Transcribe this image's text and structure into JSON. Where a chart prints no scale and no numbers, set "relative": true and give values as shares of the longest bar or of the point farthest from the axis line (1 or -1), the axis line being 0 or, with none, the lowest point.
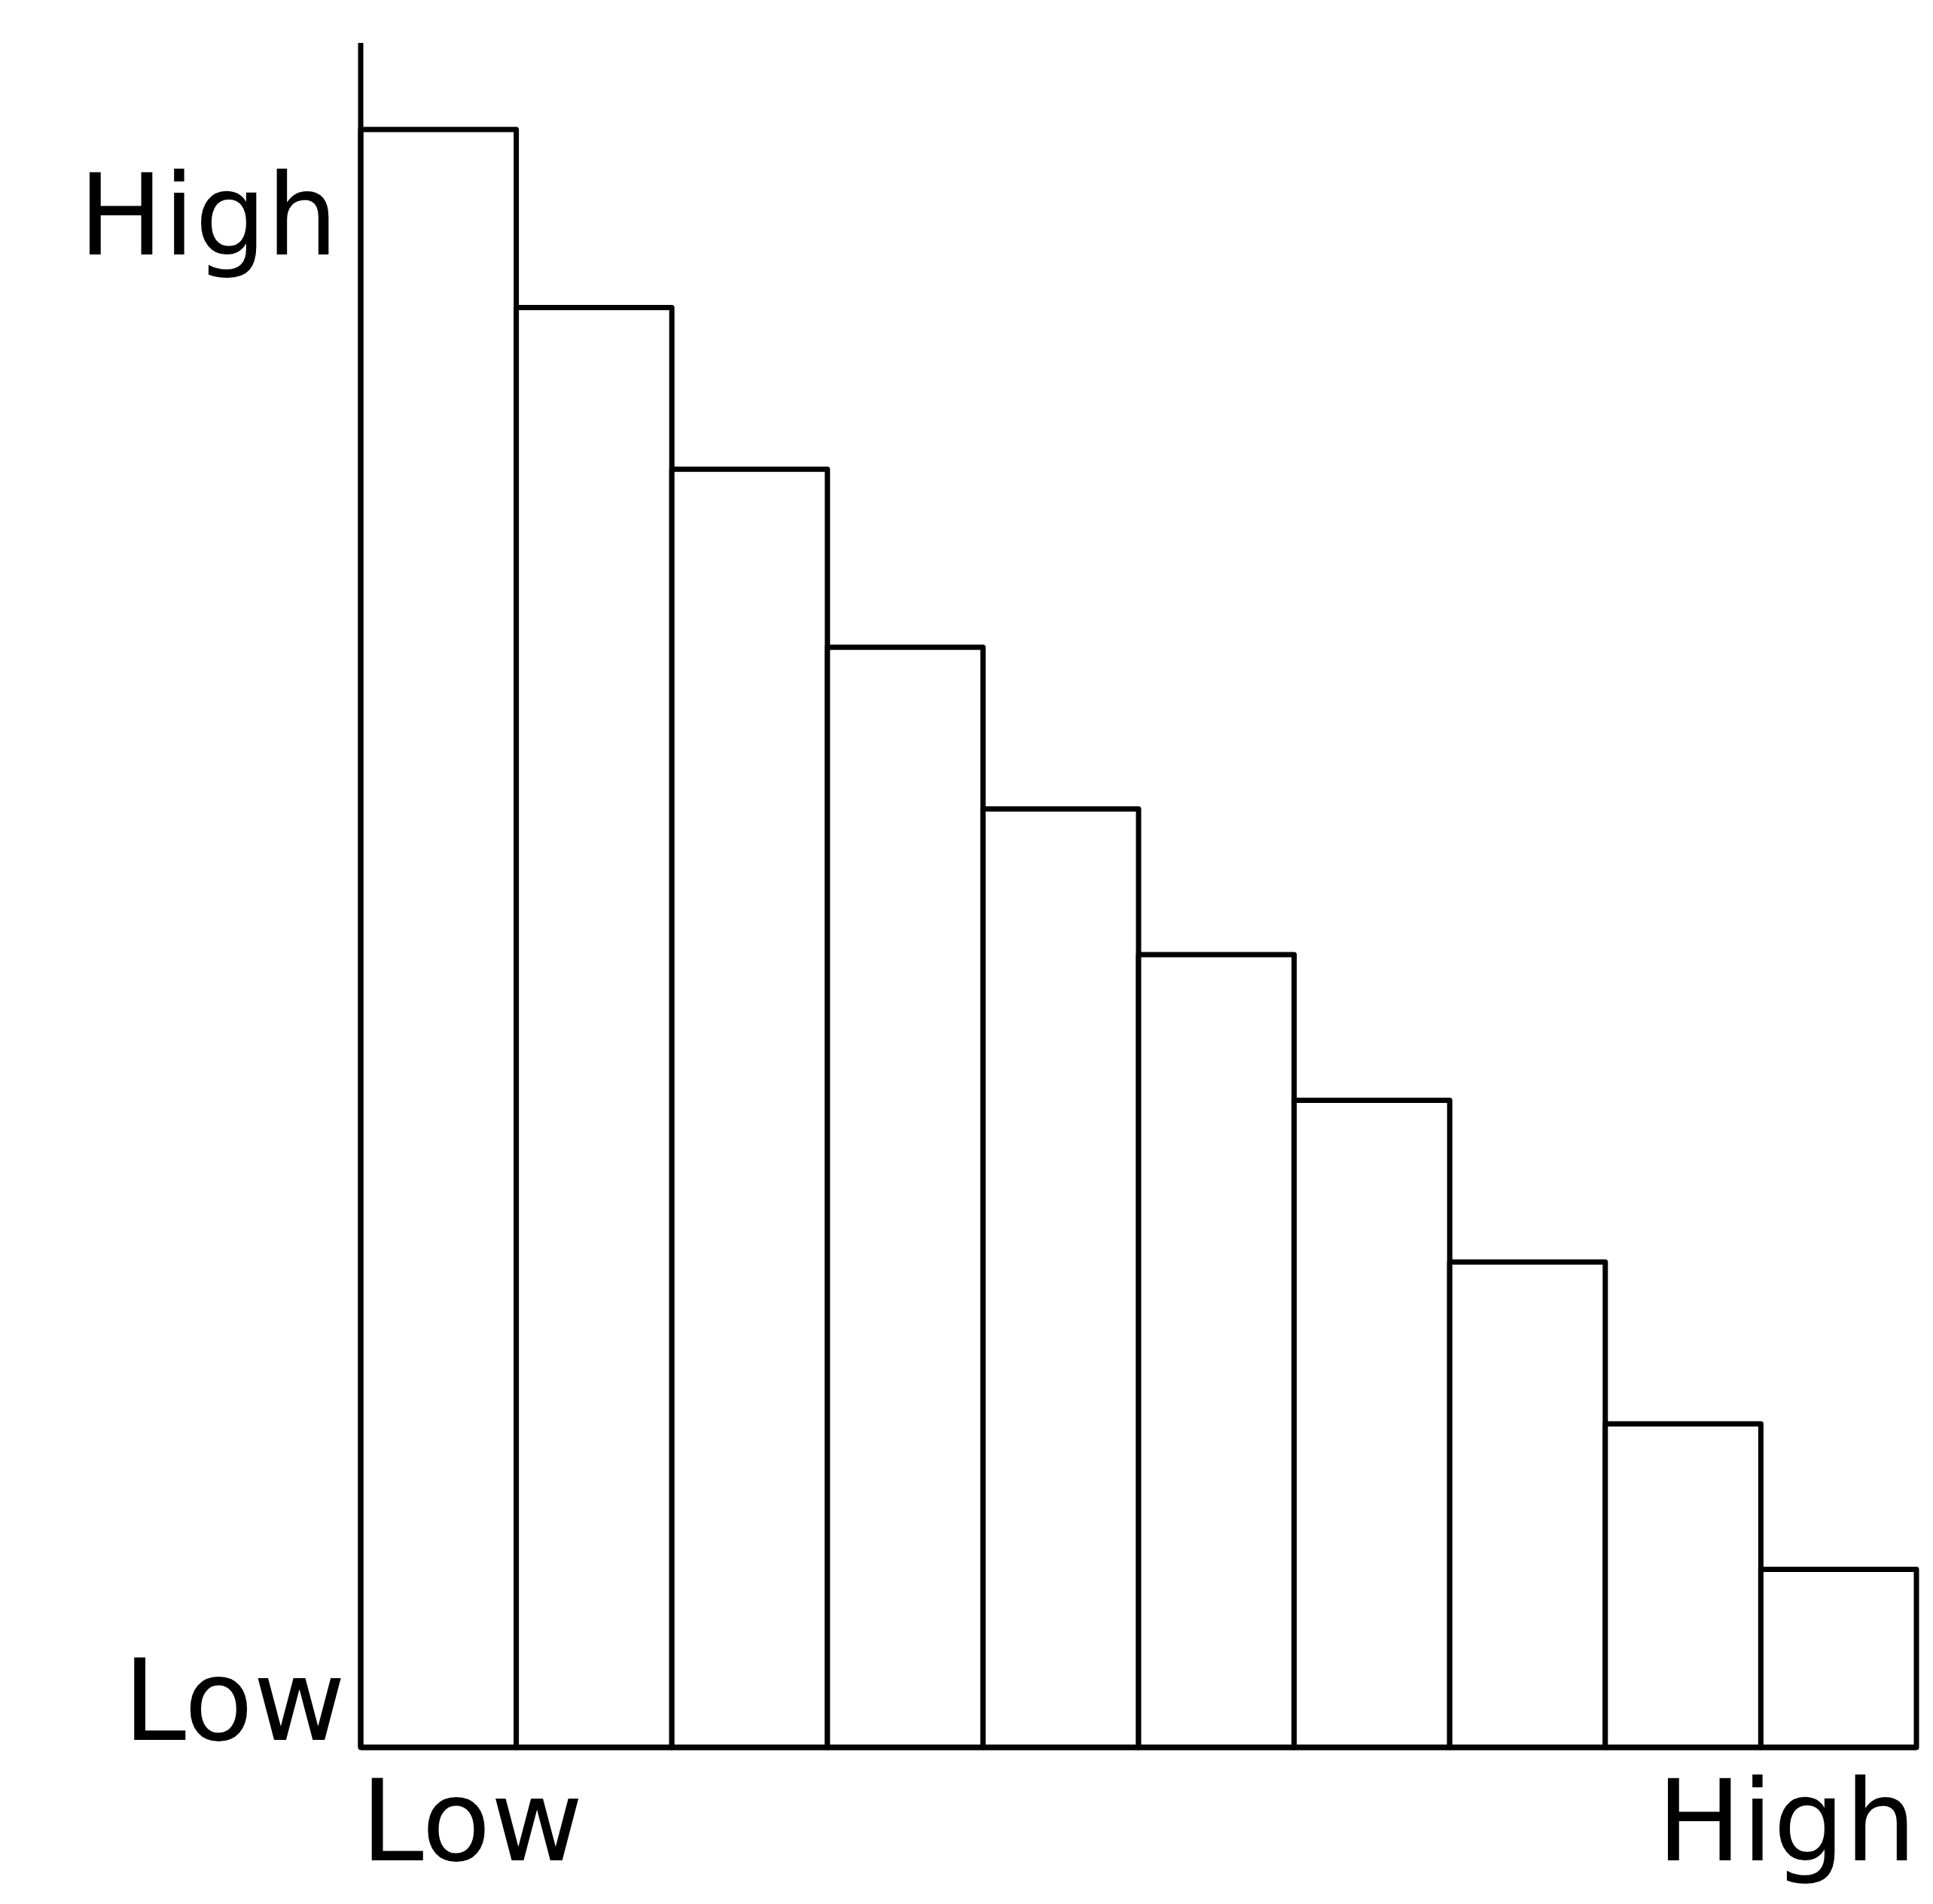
{
  "chart_data": {
    "type": "bar",
    "relative": true,
    "categories": [
      null,
      null,
      null,
      null,
      null,
      null,
      null,
      null,
      null,
      null
    ],
    "values": [
      1,
      0.89,
      0.79,
      0.68,
      0.58,
      0.49,
      0.4,
      0.3,
      0.2,
      0.11
    ],
    "color": "#ffffff",
    "annotations": [
      "High",
      "Low",
      "Low",
      "High"
    ]
  }
}
